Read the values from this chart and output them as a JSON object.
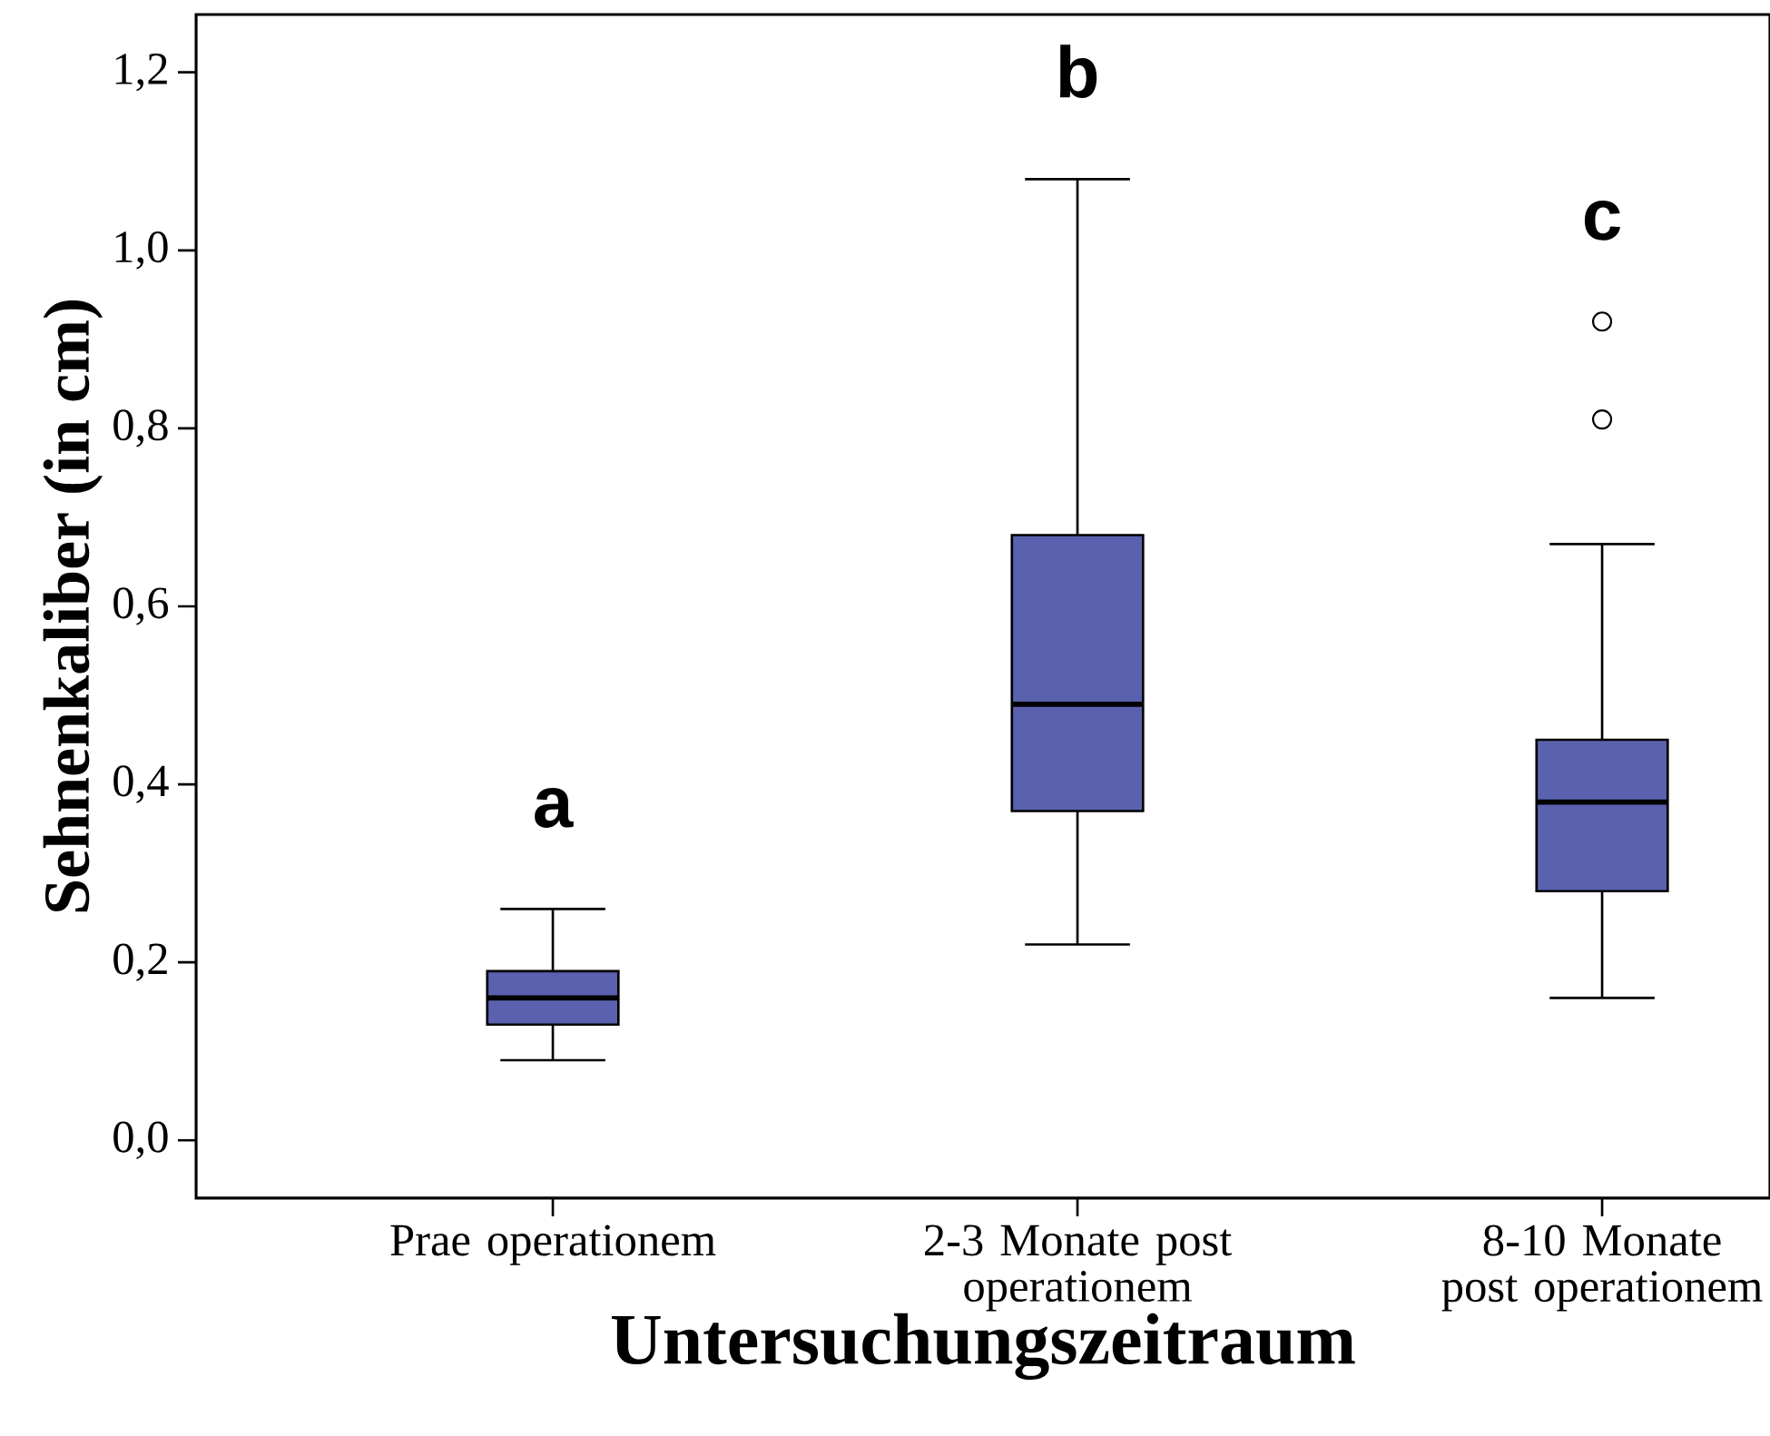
{
  "chart_data": {
    "type": "box",
    "xlabel": "Untersuchungszeitraum",
    "ylabel": "Sehnenkaliber (in cm)",
    "categories": [
      "Prae operationem",
      "2-3 Monate post operationem",
      "8-10 Monate post operationem"
    ],
    "color": "#5a62b0",
    "boxes": [
      {
        "low": 0.09,
        "q1": 0.13,
        "median": 0.16,
        "q3": 0.19,
        "high": 0.26
      },
      {
        "low": 0.22,
        "q1": 0.37,
        "median": 0.49,
        "q3": 0.68,
        "high": 1.08
      },
      {
        "low": 0.16,
        "q1": 0.28,
        "median": 0.38,
        "q3": 0.45,
        "high": 0.67,
        "outliers": [
          0.81,
          0.92
        ]
      }
    ],
    "ylim": [
      -0.065,
      1.265
    ],
    "yticks": [
      {
        "value": 0,
        "label": "0,0"
      },
      {
        "value": 0.2,
        "label": "0,2"
      },
      {
        "value": 0.4,
        "label": "0,4"
      },
      {
        "value": 0.6,
        "label": "0,6"
      },
      {
        "value": 0.8,
        "label": "0,8"
      },
      {
        "value": 1.0,
        "label": "1,0"
      },
      {
        "value": 1.2,
        "label": "1,2"
      }
    ],
    "grid": false,
    "annotations": [
      "a",
      "b",
      "c"
    ]
  }
}
